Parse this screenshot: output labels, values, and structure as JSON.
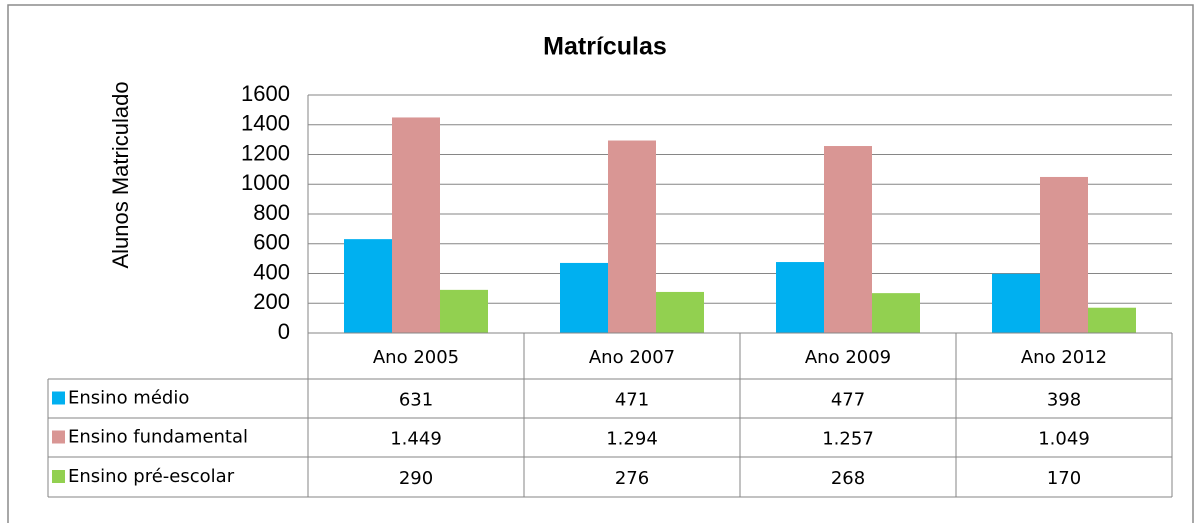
{
  "chart_data": {
    "type": "bar",
    "title": "Matrículas",
    "y_label": "Alunos Matriculado",
    "categories": [
      "Ano 2005",
      "Ano 2007",
      "Ano 2009",
      "Ano 2012"
    ],
    "series": [
      {
        "name": "Ensino médio",
        "color": "#00b0f0",
        "values": [
          631,
          471,
          477,
          398
        ]
      },
      {
        "name": "Ensino fundamental",
        "color": "#d99694",
        "values": [
          1449,
          1294,
          1257,
          1049
        ],
        "value_labels": [
          "1.449",
          "1.294",
          "1.257",
          "1.049"
        ]
      },
      {
        "name": "Ensino pré-escolar",
        "color": "#92d050",
        "values": [
          290,
          276,
          268,
          170
        ]
      }
    ],
    "ylim": [
      0,
      1600
    ],
    "yticks": [
      0,
      200,
      400,
      600,
      800,
      1000,
      1200,
      1400,
      1600
    ],
    "grid": true
  }
}
